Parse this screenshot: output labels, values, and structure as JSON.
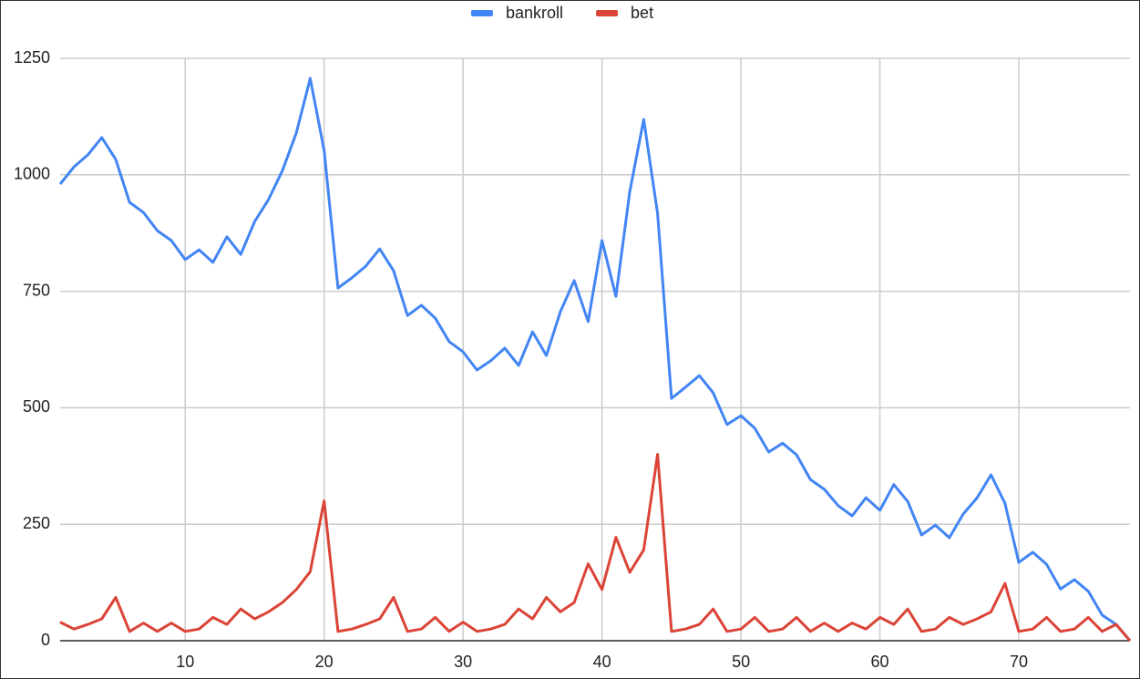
{
  "chart_data": {
    "type": "line",
    "x": [
      1,
      2,
      3,
      4,
      5,
      6,
      7,
      8,
      9,
      10,
      11,
      12,
      13,
      14,
      15,
      16,
      17,
      18,
      19,
      20,
      21,
      22,
      23,
      24,
      25,
      26,
      27,
      28,
      29,
      30,
      31,
      32,
      33,
      34,
      35,
      36,
      37,
      38,
      39,
      40,
      41,
      42,
      43,
      44,
      45,
      46,
      47,
      48,
      49,
      50,
      51,
      52,
      53,
      54,
      55,
      56,
      57,
      58,
      59,
      60,
      61,
      62,
      63,
      64,
      65,
      66,
      67,
      68,
      69,
      70,
      71,
      72,
      73,
      74,
      75,
      76,
      77,
      78
    ],
    "series": [
      {
        "name": "bankroll",
        "color": "#4285f4",
        "values": [
          980,
          1017,
          1043,
          1080,
          1033,
          941,
          919,
          880,
          859,
          818,
          839,
          812,
          867,
          829,
          900,
          947,
          1009,
          1090,
          1207,
          1052,
          757,
          779,
          804,
          841,
          794,
          698,
          720,
          692,
          642,
          620,
          581,
          601,
          628,
          591,
          663,
          612,
          706,
          773,
          685,
          859,
          739,
          964,
          1119,
          917,
          520,
          544,
          569,
          532,
          464,
          483,
          456,
          405,
          424,
          399,
          346,
          325,
          290,
          268,
          307,
          280,
          335,
          299,
          227,
          248,
          221,
          272,
          307,
          356,
          295,
          168,
          190,
          164,
          111,
          131,
          106,
          55,
          35,
          0
        ]
      },
      {
        "name": "bet",
        "color": "#db4437",
        "values": [
          40,
          25,
          35,
          47,
          93,
          20,
          38,
          20,
          38,
          20,
          25,
          50,
          35,
          68,
          47,
          62,
          82,
          110,
          148,
          300,
          20,
          25,
          35,
          47,
          93,
          20,
          25,
          50,
          20,
          40,
          20,
          25,
          35,
          68,
          47,
          93,
          62,
          82,
          165,
          110,
          222,
          147,
          195,
          400,
          20,
          25,
          35,
          68,
          20,
          25,
          50,
          20,
          25,
          50,
          20,
          38,
          20,
          38,
          25,
          50,
          35,
          68,
          20,
          25,
          50,
          35,
          47,
          62,
          123,
          20,
          25,
          50,
          20,
          25,
          50,
          20,
          35,
          0
        ]
      }
    ],
    "xlim": [
      1,
      78
    ],
    "xticks": [
      10,
      20,
      30,
      40,
      50,
      60,
      70
    ],
    "ylim": [
      0,
      1250
    ],
    "yticks": [
      0,
      250,
      500,
      750,
      1000,
      1250
    ],
    "grid": true,
    "legend": "top"
  }
}
